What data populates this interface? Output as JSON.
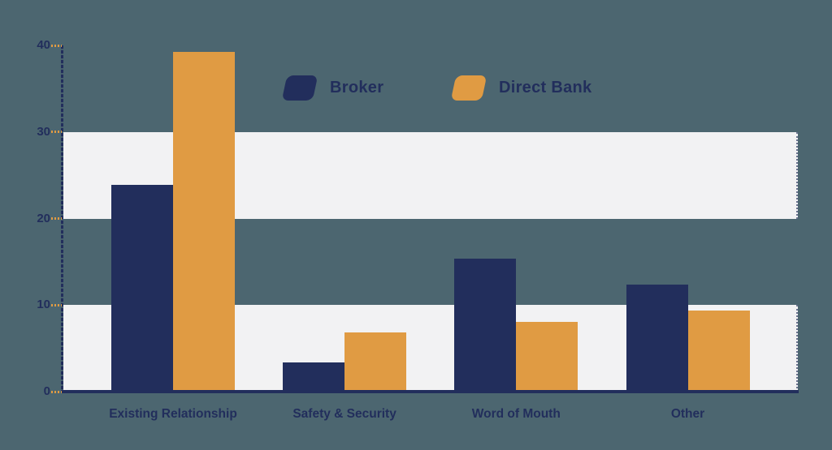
{
  "colors": {
    "background": "#4c6670",
    "band": "#f2f2f3",
    "axis": "#222e5c",
    "text": "#222e5c",
    "tick_mark": "#e09b43",
    "broker": "#222e5c",
    "direct_bank": "#e09b43"
  },
  "legend": {
    "items": [
      {
        "label": "Broker",
        "color": "#222e5c"
      },
      {
        "label": "Direct Bank",
        "color": "#e09b43"
      }
    ]
  },
  "chart_data": {
    "type": "bar",
    "title": "",
    "xlabel": "",
    "ylabel": "",
    "categories": [
      "Existing Relationship",
      "Safety & Security",
      "Word of Mouth",
      "Other"
    ],
    "series": [
      {
        "name": "Broker",
        "color": "#222e5c",
        "values": [
          23.9,
          3.4,
          15.4,
          12.4
        ]
      },
      {
        "name": "Direct Bank",
        "color": "#e09b43",
        "values": [
          39.3,
          6.8,
          8.1,
          9.4
        ]
      }
    ],
    "ylim": [
      0,
      40
    ],
    "yticks": [
      40,
      30,
      20,
      10,
      0
    ],
    "grid_bands": [
      [
        20,
        30
      ],
      [
        0,
        10
      ]
    ],
    "grid": "horizontal-bands-only",
    "legend_position": "top-center"
  }
}
